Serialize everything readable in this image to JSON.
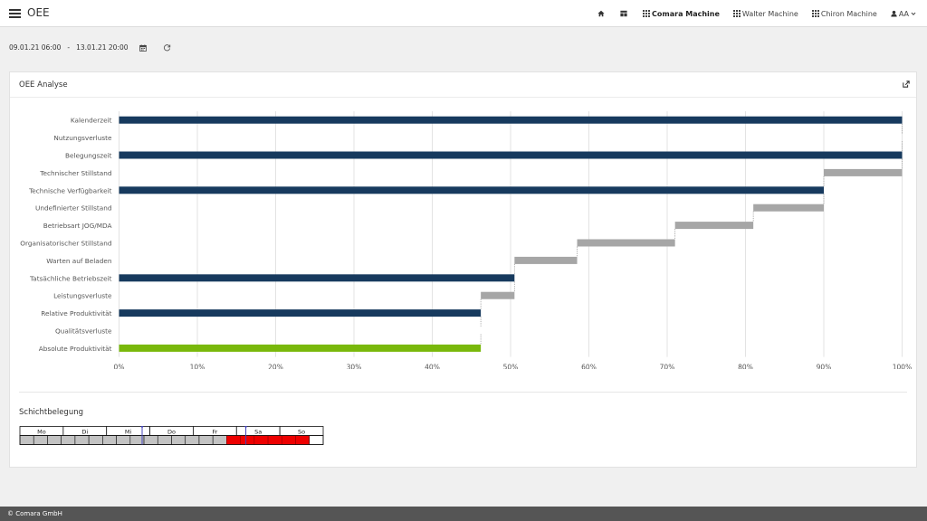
{
  "app": {
    "title": "OEE"
  },
  "nav": {
    "items": [
      {
        "name": "nav-home",
        "icon": "home-icon",
        "label": ""
      },
      {
        "name": "nav-dashboard",
        "icon": "dashboard-icon",
        "label": ""
      },
      {
        "name": "nav-comara-machine",
        "icon": "grid-icon",
        "label": "Comara Machine",
        "active": true
      },
      {
        "name": "nav-walter-machine",
        "icon": "grid-icon",
        "label": "Walter Machine"
      },
      {
        "name": "nav-chiron-machine",
        "icon": "grid-icon",
        "label": "Chiron Machine"
      }
    ],
    "user": {
      "icon": "user-icon",
      "label": "AA"
    }
  },
  "daterange": {
    "start": "09.01.21 06:00",
    "separator": "-",
    "end": "13.01.21 20:00"
  },
  "card": {
    "title": "OEE Analyse"
  },
  "chart_data": {
    "type": "bar",
    "orientation": "horizontal-waterfall",
    "categories": [
      "Kalenderzeit",
      "Nutzungsverluste",
      "Belegungszeit",
      "Technischer Stillstand",
      "Technische Verfügbarkeit",
      "Undefinierter Stillstand",
      "Betriebsart JOG/MDA",
      "Organisatorischer Stillstand",
      "Warten auf Beladen",
      "Tatsächliche Betriebszeit",
      "Leistungsverluste",
      "Relative Produktivität",
      "Qualitätsverluste",
      "Absolute Produktivität"
    ],
    "bars": [
      {
        "start": 0,
        "end": 100,
        "kind": "total"
      },
      {
        "start": 100,
        "end": 100,
        "kind": "loss"
      },
      {
        "start": 0,
        "end": 100,
        "kind": "total"
      },
      {
        "start": 90,
        "end": 100,
        "kind": "loss"
      },
      {
        "start": 0,
        "end": 90,
        "kind": "total"
      },
      {
        "start": 81,
        "end": 90,
        "kind": "loss"
      },
      {
        "start": 71,
        "end": 81,
        "kind": "loss"
      },
      {
        "start": 58.5,
        "end": 71,
        "kind": "loss"
      },
      {
        "start": 50.5,
        "end": 58.5,
        "kind": "loss"
      },
      {
        "start": 0,
        "end": 50.5,
        "kind": "total"
      },
      {
        "start": 46.2,
        "end": 50.5,
        "kind": "loss"
      },
      {
        "start": 0,
        "end": 46.2,
        "kind": "total"
      },
      {
        "start": 46.2,
        "end": 46.2,
        "kind": "loss"
      },
      {
        "start": 0,
        "end": 46.2,
        "kind": "result"
      }
    ],
    "xlim": [
      0,
      100
    ],
    "xticks": [
      "0%",
      "10%",
      "20%",
      "30%",
      "40%",
      "50%",
      "60%",
      "70%",
      "80%",
      "90%",
      "100%"
    ],
    "grid": true,
    "colors": {
      "total": "#173a5e",
      "loss": "#a6a6a6",
      "result": "#79b80b",
      "grid": "#e3e3e3",
      "connector": "#999999"
    }
  },
  "shift": {
    "title": "Schichtbelegung",
    "days": [
      "Mo",
      "Di",
      "Mi",
      "Do",
      "Fr",
      "Sa",
      "So"
    ],
    "slots": [
      "g",
      "g",
      "g",
      "g",
      "g",
      "g",
      "g",
      "g",
      "g",
      "g",
      "g",
      "g",
      "g",
      "g",
      "g",
      "r",
      "r",
      "r",
      "r",
      "r",
      "r",
      "w"
    ],
    "markers": [
      0.403,
      0.745
    ],
    "colors": {
      "g": "#c3c3c3",
      "r": "#ee0000",
      "w": "#ffffff",
      "marker": "#4444bb"
    }
  },
  "footer": {
    "text": "© Comara GmbH"
  }
}
